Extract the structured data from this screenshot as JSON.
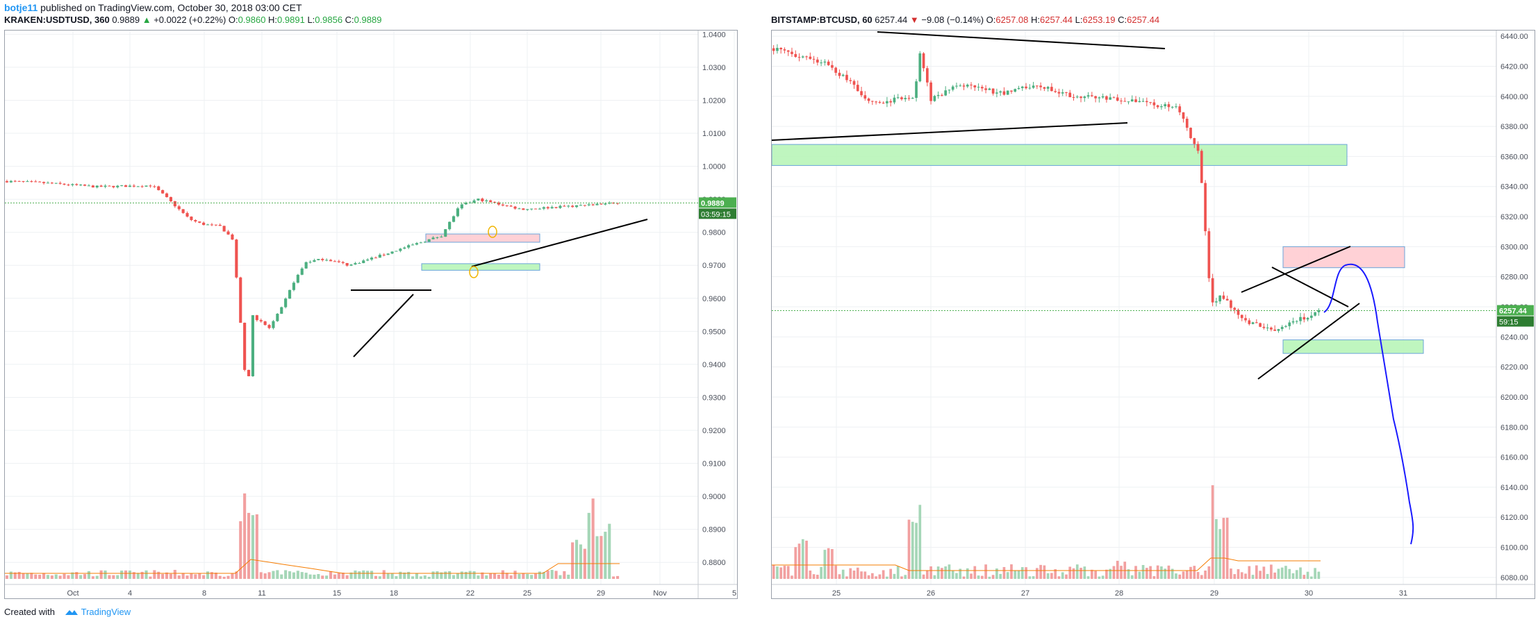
{
  "publish": {
    "user": "botje11",
    "text": " published on TradingView.com, October 30, 2018 03:00 CET"
  },
  "left_header": {
    "symbol": "KRAKEN:USDTUSD, 360",
    "last": "0.9889",
    "change_arrow": "▲",
    "change": "+0.0022 (+0.22%)",
    "o_label": "O:",
    "o": "0.9860",
    "h_label": "H:",
    "h": "0.9891",
    "l_label": "L:",
    "l": "0.9856",
    "c_label": "C:",
    "c": "0.9889"
  },
  "right_header": {
    "symbol": "BITSTAMP:BTCUSD, 60",
    "last": "6257.44",
    "change_arrow": "▼",
    "change": "−9.08 (−0.14%)",
    "o_label": "O:",
    "o": "6257.08",
    "h_label": "H:",
    "h": "6257.44",
    "l_label": "L:",
    "l": "6253.19",
    "c_label": "C:",
    "c": "6257.44"
  },
  "footer": {
    "created": "Created with",
    "brand": "TradingView"
  },
  "colors": {
    "up": "#26a69a",
    "up_body": "#4caf80",
    "down": "#ef5350",
    "grid": "#eef0f3",
    "axis_text": "#4a4f5a",
    "badge": "#4caf50",
    "line": "#000000",
    "drawing_blue": "#1a1aff",
    "ma": "#f57c00"
  },
  "chart_data": [
    {
      "type": "candlestick",
      "title": "KRAKEN:USDTUSD, 360",
      "x_ticks": [
        "Oct",
        "4",
        "8",
        "11",
        "15",
        "18",
        "22",
        "25",
        "29",
        "Nov",
        "5"
      ],
      "y_ticks": [
        "1.0400",
        "1.0300",
        "1.0200",
        "1.0100",
        "1.0000",
        "0.9900",
        "0.9800",
        "0.9700",
        "0.9600",
        "0.9500",
        "0.9400",
        "0.9300",
        "0.9200",
        "0.9100",
        "0.9000",
        "0.8900",
        "0.8800"
      ],
      "ylim": [
        0.875,
        1.0405
      ],
      "last_price_badge": "0.9889",
      "countdown_badge": "03:59:15",
      "close_path": [
        {
          "x": "Sep 28",
          "y": 0.9955
        },
        {
          "x": "Oct 1",
          "y": 0.995
        },
        {
          "x": "Oct 4",
          "y": 0.9938
        },
        {
          "x": "Oct 8",
          "y": 0.9942
        },
        {
          "x": "Oct 9",
          "y": 0.991
        },
        {
          "x": "Oct 10",
          "y": 0.984
        },
        {
          "x": "Oct 11",
          "y": 0.9825
        },
        {
          "x": "Oct 13",
          "y": 0.9818
        },
        {
          "x": "Oct 14",
          "y": 0.978
        },
        {
          "x": "Oct 15",
          "y": 0.96
        },
        {
          "x": "Oct 15 12h",
          "y": 0.927
        },
        {
          "x": "Oct 16",
          "y": 0.955
        },
        {
          "x": "Oct 17",
          "y": 0.951
        },
        {
          "x": "Oct 18",
          "y": 0.957
        },
        {
          "x": "Oct 19",
          "y": 0.965
        },
        {
          "x": "Oct 20",
          "y": 0.971
        },
        {
          "x": "Oct 21",
          "y": 0.972
        },
        {
          "x": "Oct 22",
          "y": 0.97
        },
        {
          "x": "Oct 24",
          "y": 0.9735
        },
        {
          "x": "Oct 25",
          "y": 0.976
        },
        {
          "x": "Oct 26",
          "y": 0.979
        },
        {
          "x": "Oct 27",
          "y": 0.988
        },
        {
          "x": "Oct 28",
          "y": 0.99
        },
        {
          "x": "Oct 29",
          "y": 0.987
        },
        {
          "x": "Oct 30",
          "y": 0.9889
        }
      ],
      "zones": [
        {
          "type": "resistance",
          "y_from": 0.977,
          "y_to": 0.9795,
          "x_from": "Oct 19",
          "x_to": "Oct 26"
        },
        {
          "type": "support",
          "y_from": 0.9685,
          "y_to": 0.9705,
          "x_from": "Oct 19",
          "x_to": "Oct 26"
        }
      ]
    },
    {
      "type": "candlestick",
      "title": "BITSTAMP:BTCUSD, 60",
      "x_ticks": [
        "25",
        "26",
        "27",
        "28",
        "29",
        "30",
        "31"
      ],
      "y_ticks": [
        "6440.00",
        "6420.00",
        "6400.00",
        "6380.00",
        "6360.00",
        "6340.00",
        "6320.00",
        "6300.00",
        "6280.00",
        "6260.00",
        "6240.00",
        "6220.00",
        "6200.00",
        "6180.00",
        "6160.00",
        "6140.00",
        "6120.00",
        "6100.00",
        "6080.00"
      ],
      "ylim": [
        6079,
        6441
      ],
      "last_price_badge": "6257.44",
      "countdown_badge": "59:15",
      "close_path": [
        {
          "x": "Oct 24 12:00",
          "y": 6432
        },
        {
          "x": "Oct 25 00:00",
          "y": 6422
        },
        {
          "x": "Oct 25 06:00",
          "y": 6410
        },
        {
          "x": "Oct 25 12:00",
          "y": 6395
        },
        {
          "x": "Oct 26 00:00",
          "y": 6400
        },
        {
          "x": "Oct 26 10:00",
          "y": 6428
        },
        {
          "x": "Oct 26 14:00",
          "y": 6398
        },
        {
          "x": "Oct 27 00:00",
          "y": 6408
        },
        {
          "x": "Oct 27 12:00",
          "y": 6402
        },
        {
          "x": "Oct 28 00:00",
          "y": 6408
        },
        {
          "x": "Oct 28 12:00",
          "y": 6400
        },
        {
          "x": "Oct 29 00:00",
          "y": 6398
        },
        {
          "x": "Oct 29 06:00",
          "y": 6392
        },
        {
          "x": "Oct 29 12:00",
          "y": 6360
        },
        {
          "x": "Oct 29 14:00",
          "y": 6262
        },
        {
          "x": "Oct 29 18:00",
          "y": 6268
        },
        {
          "x": "Oct 29 22:00",
          "y": 6250
        },
        {
          "x": "Oct 30 00:00",
          "y": 6245
        },
        {
          "x": "Oct 30 02:00",
          "y": 6257.44
        }
      ],
      "zones": [
        {
          "type": "support",
          "y_from": 6354,
          "y_to": 6368,
          "x_from": "Oct 24",
          "x_to": "Oct 29"
        },
        {
          "type": "resistance",
          "y_from": 6286,
          "y_to": 6300,
          "x_from": "Oct 29 18:00",
          "x_to": "Oct 30 12:00"
        },
        {
          "type": "support",
          "y_from": 6229,
          "y_to": 6238,
          "x_from": "Oct 29 18:00",
          "x_to": "Oct 31"
        }
      ]
    }
  ]
}
